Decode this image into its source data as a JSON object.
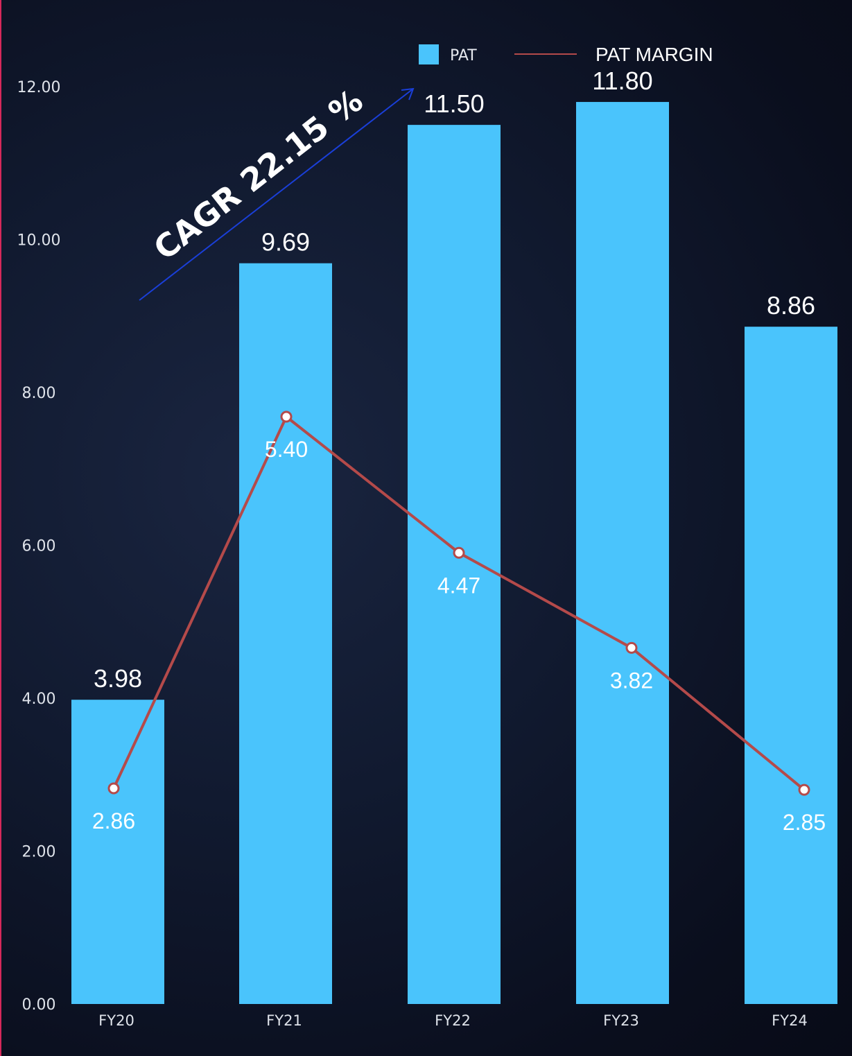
{
  "chart_data": {
    "type": "bar",
    "categories": [
      "FY20",
      "FY21",
      "FY22",
      "FY23",
      "FY24"
    ],
    "series": [
      {
        "name": "PAT",
        "type": "bar",
        "values": [
          3.98,
          9.69,
          11.5,
          11.8,
          8.86
        ],
        "color": "#4ac4fc"
      },
      {
        "name": "PAT MARGIN",
        "type": "line",
        "values": [
          2.86,
          5.4,
          4.47,
          3.82,
          2.85
        ],
        "color": "#b44a4a"
      }
    ],
    "y_ticks": [
      "0.00",
      "2.00",
      "4.00",
      "6.00",
      "8.00",
      "10.00",
      "12.00"
    ],
    "ylim": [
      0,
      12
    ],
    "bar_labels": [
      "3.98",
      "9.69",
      "11.50",
      "11.80",
      "8.86"
    ],
    "line_labels": [
      "2.86",
      "5.40",
      "4.47",
      "3.82",
      "2.85"
    ],
    "legend": {
      "bar": "PAT",
      "line": "PAT MARGIN",
      "position": "top-right"
    },
    "annotation": {
      "text": "CAGR 22.15 %",
      "arrow_color": "#1a3fd8"
    },
    "grid": false
  }
}
